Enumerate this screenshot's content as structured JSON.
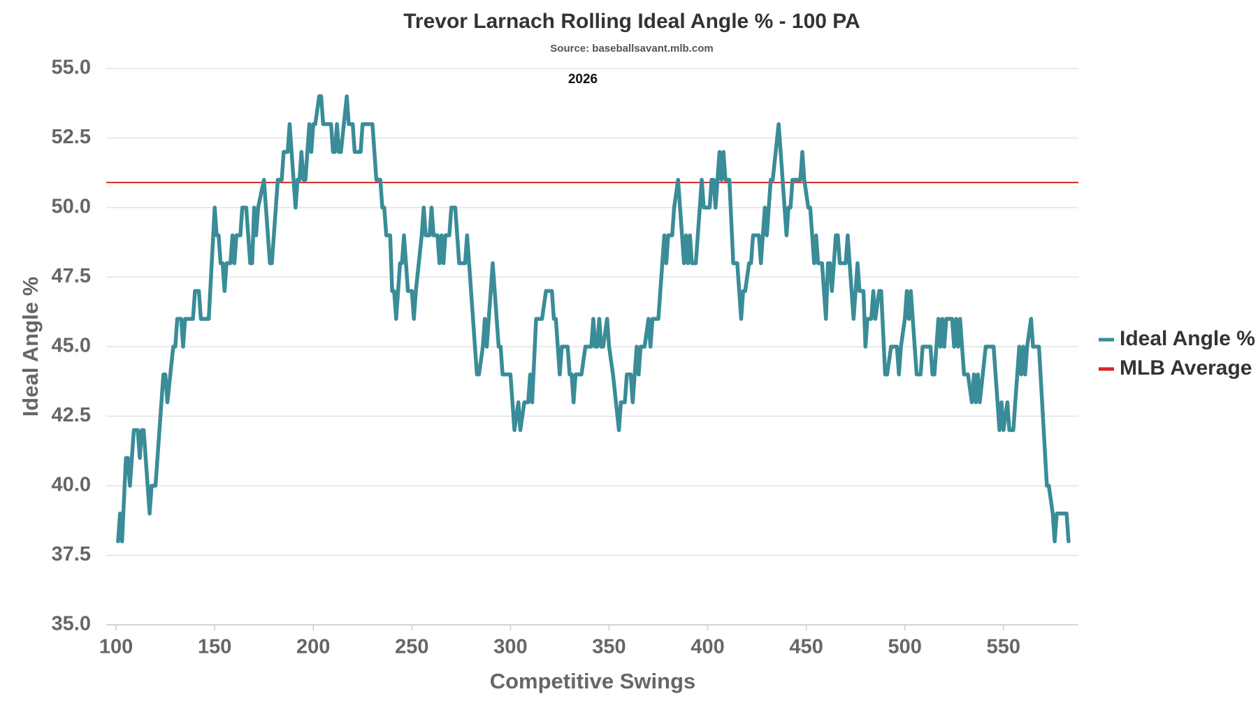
{
  "chart_data": {
    "type": "line",
    "title": "Trevor Larnach Rolling Ideal Angle % - 100 PA",
    "subtitle": "Source: baseballsavant.mlb.com",
    "annotation": "2026",
    "xlabel": "Competitive Swings",
    "ylabel": "Ideal Angle %",
    "xlim": [
      95,
      588
    ],
    "xticks": [
      100,
      150,
      200,
      250,
      300,
      350,
      400,
      450,
      500,
      550
    ],
    "ylim": [
      35,
      55
    ],
    "yticks": [
      {
        "value": 35,
        "label": "35.0"
      },
      37.5,
      {
        "value": 40,
        "label": "40.0"
      },
      42.5,
      {
        "value": 45,
        "label": "45.0"
      },
      47.5,
      {
        "value": 50,
        "label": "50.0"
      },
      52.5,
      {
        "value": 55,
        "label": "55.0"
      }
    ],
    "grid": true,
    "legend": "right",
    "series": [
      {
        "name": "Ideal Angle %",
        "color": "#3a8c98",
        "x": [
          101,
          102,
          103,
          105,
          106,
          107,
          109,
          111,
          112,
          113,
          114,
          117,
          118,
          120,
          124,
          125,
          126,
          129,
          130,
          131,
          133,
          134,
          135,
          139,
          140,
          142,
          143,
          147,
          150,
          151,
          152,
          153,
          154,
          155,
          156,
          158,
          159,
          160,
          161,
          163,
          164,
          166,
          168,
          169,
          170,
          171,
          172,
          175,
          176,
          178,
          179,
          182,
          184,
          185,
          187,
          188,
          189,
          191,
          192,
          193,
          194,
          195,
          196,
          198,
          199,
          200,
          201,
          203,
          204,
          205,
          209,
          210,
          211,
          212,
          213,
          214,
          217,
          218,
          220,
          221,
          224,
          225,
          230,
          232,
          234,
          235,
          236,
          237,
          239,
          240,
          241,
          242,
          243,
          244,
          245,
          246,
          247,
          248,
          250,
          251,
          252,
          255,
          256,
          257,
          259,
          260,
          261,
          263,
          264,
          265,
          266,
          267,
          269,
          270,
          272,
          273,
          274,
          277,
          278,
          279,
          283,
          284,
          286,
          287,
          288,
          290,
          291,
          294,
          295,
          296,
          300,
          302,
          304,
          305,
          307,
          309,
          310,
          311,
          313,
          316,
          318,
          321,
          322,
          323,
          325,
          326,
          329,
          330,
          331,
          332,
          333,
          336,
          338,
          341,
          342,
          343,
          344,
          345,
          346,
          347,
          349,
          350,
          352,
          355,
          356,
          358,
          359,
          361,
          362,
          363,
          364,
          365,
          366,
          368,
          370,
          371,
          372,
          375,
          378,
          379,
          380,
          382,
          383,
          385,
          387,
          388,
          389,
          390,
          391,
          392,
          394,
          396,
          397,
          398,
          401,
          402,
          403,
          404,
          406,
          407,
          408,
          409,
          411,
          413,
          415,
          417,
          418,
          419,
          421,
          422,
          423,
          426,
          427,
          429,
          430,
          432,
          433,
          436,
          437,
          440,
          441,
          442,
          443,
          447,
          448,
          449,
          451,
          452,
          453,
          454,
          455,
          456,
          458,
          459,
          460,
          461,
          462,
          463,
          465,
          466,
          467,
          470,
          471,
          472,
          473,
          474,
          475,
          476,
          477,
          479,
          480,
          481,
          483,
          484,
          485,
          487,
          488,
          490,
          491,
          493,
          496,
          497,
          498,
          500,
          501,
          502,
          503,
          504,
          506,
          508,
          509,
          513,
          514,
          515,
          517,
          518,
          519,
          520,
          521,
          524,
          525,
          526,
          527,
          528,
          530,
          532,
          534,
          535,
          536,
          537,
          538,
          541,
          545,
          547,
          548,
          549,
          550,
          552,
          553,
          555,
          556,
          558,
          559,
          560,
          561,
          562,
          564,
          565,
          568,
          572,
          573,
          575,
          576,
          577,
          582,
          583
        ],
        "values": [
          38,
          39,
          38,
          41,
          41,
          40,
          42,
          42,
          41,
          42,
          42,
          39,
          40,
          40,
          44,
          44,
          43,
          45,
          45,
          46,
          46,
          45,
          46,
          46,
          47,
          47,
          46,
          46,
          50,
          49,
          49,
          48,
          48,
          47,
          48,
          48,
          49,
          48,
          49,
          49,
          50,
          50,
          48,
          48,
          50,
          49,
          50,
          51,
          50,
          48,
          48,
          51,
          51,
          52,
          52,
          53,
          52,
          50,
          51,
          51,
          52,
          51,
          51,
          53,
          52,
          53,
          53,
          54,
          54,
          53,
          53,
          52,
          52,
          53,
          52,
          52,
          54,
          53,
          53,
          52,
          52,
          53,
          53,
          51,
          51,
          50,
          50,
          49,
          49,
          47,
          47,
          46,
          47,
          48,
          48,
          49,
          48,
          47,
          47,
          46,
          47,
          49,
          50,
          49,
          49,
          50,
          49,
          49,
          48,
          49,
          48,
          49,
          49,
          50,
          50,
          49,
          48,
          48,
          49,
          48,
          44,
          44,
          45,
          46,
          45,
          47,
          48,
          45,
          45,
          44,
          44,
          42,
          43,
          42,
          43,
          43,
          44,
          43,
          46,
          46,
          47,
          47,
          46,
          46,
          44,
          45,
          45,
          44,
          44,
          43,
          44,
          44,
          45,
          45,
          46,
          45,
          45,
          46,
          45,
          45,
          46,
          45,
          44,
          42,
          43,
          43,
          44,
          44,
          43,
          44,
          45,
          44,
          45,
          45,
          46,
          45,
          46,
          46,
          49,
          48,
          49,
          49,
          50,
          51,
          49,
          48,
          49,
          48,
          49,
          48,
          48,
          50,
          51,
          50,
          50,
          51,
          51,
          50,
          52,
          51,
          52,
          51,
          51,
          48,
          48,
          46,
          47,
          47,
          48,
          48,
          49,
          49,
          48,
          50,
          49,
          51,
          51,
          53,
          52,
          49,
          50,
          50,
          51,
          51,
          52,
          51,
          50,
          50,
          49,
          48,
          49,
          48,
          48,
          47,
          46,
          48,
          48,
          47,
          49,
          49,
          48,
          48,
          49,
          48,
          47,
          46,
          47,
          48,
          47,
          47,
          45,
          46,
          46,
          47,
          46,
          47,
          47,
          44,
          44,
          45,
          45,
          44,
          45,
          46,
          47,
          46,
          47,
          46,
          44,
          44,
          45,
          45,
          44,
          44,
          46,
          45,
          46,
          45,
          46,
          46,
          45,
          46,
          45,
          46,
          44,
          44,
          43,
          44,
          43,
          44,
          43,
          45,
          45,
          43,
          42,
          43,
          42,
          43,
          42,
          42,
          43,
          45,
          44,
          45,
          44,
          45,
          46,
          45,
          45,
          40,
          40,
          39,
          38,
          39,
          39,
          38
        ]
      }
    ],
    "reference_lines": [
      {
        "name": "MLB Average",
        "color": "#d62728",
        "value": 50.9
      }
    ]
  }
}
